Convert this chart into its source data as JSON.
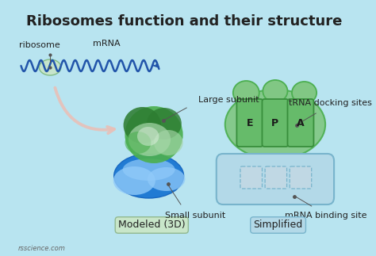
{
  "title": "Ribosomes function and their structure",
  "bg_color": "#b8e4f0",
  "title_fontsize": 13,
  "title_fontweight": "bold",
  "labels": {
    "ribosome": "ribosome",
    "mrna": "mRNA",
    "large_subunit": "Large subunit",
    "trna_docking": "tRNA docking sites",
    "small_subunit": "Small subunit",
    "mrna_binding": "mRNA binding site",
    "modeled": "Modeled (3D)",
    "simplified": "Simplified",
    "e_site": "E",
    "p_site": "P",
    "a_site": "A",
    "watermark": "rsscience.com"
  },
  "colors": {
    "large_subunit_dark": "#2e7d32",
    "large_subunit_mid": "#4caf50",
    "large_subunit_light": "#a5d6a7",
    "small_subunit_dark": "#1565c0",
    "small_subunit_mid": "#1976d2",
    "small_subunit_light": "#90caf9",
    "large_subunit_simplified": "#81c784",
    "large_subunit_simplified_outline": "#4caf50",
    "small_subunit_simplified": "#b3d9e8",
    "small_subunit_simplified_outline": "#78b4cc",
    "site_fill": "#66bb6a",
    "site_stroke": "#388e3c",
    "mini_ribosome_fill": "#c8e6c9",
    "arrow_color": "#e8c0b8",
    "wavy_color": "#2255aa",
    "text_color": "#222222",
    "dot_color": "#555555"
  }
}
